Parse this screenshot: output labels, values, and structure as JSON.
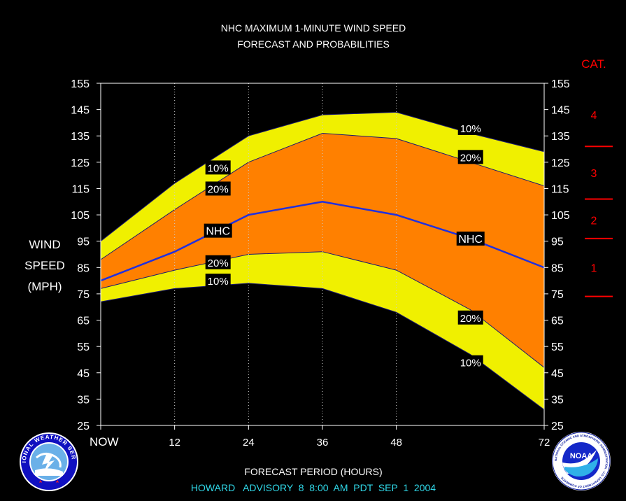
{
  "chart_data": {
    "type": "area",
    "title": "NHC MAXIMUM 1-MINUTE WIND SPEED",
    "subtitle": "FORECAST AND PROBABILITIES",
    "xlabel": "FORECAST PERIOD (HOURS)",
    "ylabel_lines": [
      "WIND",
      "SPEED",
      "(MPH)"
    ],
    "x_ticks": [
      {
        "value": 0,
        "label": "NOW"
      },
      {
        "value": 12,
        "label": "12"
      },
      {
        "value": 24,
        "label": "24"
      },
      {
        "value": 36,
        "label": "36"
      },
      {
        "value": 48,
        "label": "48"
      },
      {
        "value": 72,
        "label": "72"
      }
    ],
    "xlim": [
      0,
      72
    ],
    "ylim": [
      25,
      155
    ],
    "y_ticks": [
      25,
      35,
      45,
      55,
      65,
      75,
      85,
      95,
      105,
      115,
      125,
      135,
      145,
      155
    ],
    "x": [
      0,
      12,
      24,
      36,
      48,
      60,
      72
    ],
    "series": [
      {
        "name": "10%",
        "band": "upper",
        "values": [
          95,
          117,
          135,
          143,
          144,
          136,
          129
        ],
        "color": "#f0f000"
      },
      {
        "name": "20%",
        "band": "upper",
        "values": [
          88,
          107,
          125,
          136,
          134,
          125,
          116
        ],
        "color": "#ff8000"
      },
      {
        "name": "NHC",
        "band": "center",
        "values": [
          80,
          91,
          105,
          110,
          105,
          96,
          85
        ],
        "color": "#2030e0"
      },
      {
        "name": "20%",
        "band": "lower",
        "values": [
          77,
          84,
          90,
          91,
          84,
          69,
          47
        ],
        "color": "#ff8000"
      },
      {
        "name": "10%",
        "band": "lower",
        "values": [
          72,
          77,
          79,
          77,
          68,
          52,
          31
        ],
        "color": "#f0f000"
      }
    ],
    "series_labels": [
      {
        "text": "10%",
        "x": 17,
        "y": 123
      },
      {
        "text": "20%",
        "x": 17,
        "y": 115
      },
      {
        "text": "NHC",
        "x": 17,
        "y": 99
      },
      {
        "text": "20%",
        "x": 17,
        "y": 87
      },
      {
        "text": "10%",
        "x": 17,
        "y": 80
      },
      {
        "text": "10%",
        "x": 58,
        "y": 138
      },
      {
        "text": "20%",
        "x": 58,
        "y": 127
      },
      {
        "text": "NHC",
        "x": 58,
        "y": 96
      },
      {
        "text": "20%",
        "x": 58,
        "y": 66
      },
      {
        "text": "10%",
        "x": 58,
        "y": 49
      }
    ],
    "category_scale": {
      "title": "CAT.",
      "boundaries": [
        74,
        96,
        111,
        131
      ],
      "categories": [
        {
          "label": "1",
          "value": 85
        },
        {
          "label": "2",
          "value": 103
        },
        {
          "label": "3",
          "value": 121
        },
        {
          "label": "4",
          "value": 143
        }
      ],
      "color": "#ff0000"
    },
    "grid": "vertical-dotted",
    "legend": "none"
  },
  "footer": {
    "advisory": "HOWARD   ADVISORY  8  8:00  AM  PDT  SEP  1  2004"
  },
  "logos": {
    "left": {
      "name": "nws-logo",
      "text": "NATIONAL WEATHER SERVICE"
    },
    "right": {
      "name": "noaa-logo",
      "text": "NOAA",
      "ring_text": "NATIONAL OCEANIC AND ATMOSPHERIC ADMINISTRATION · U.S. DEPARTMENT OF COMMERCE"
    }
  }
}
